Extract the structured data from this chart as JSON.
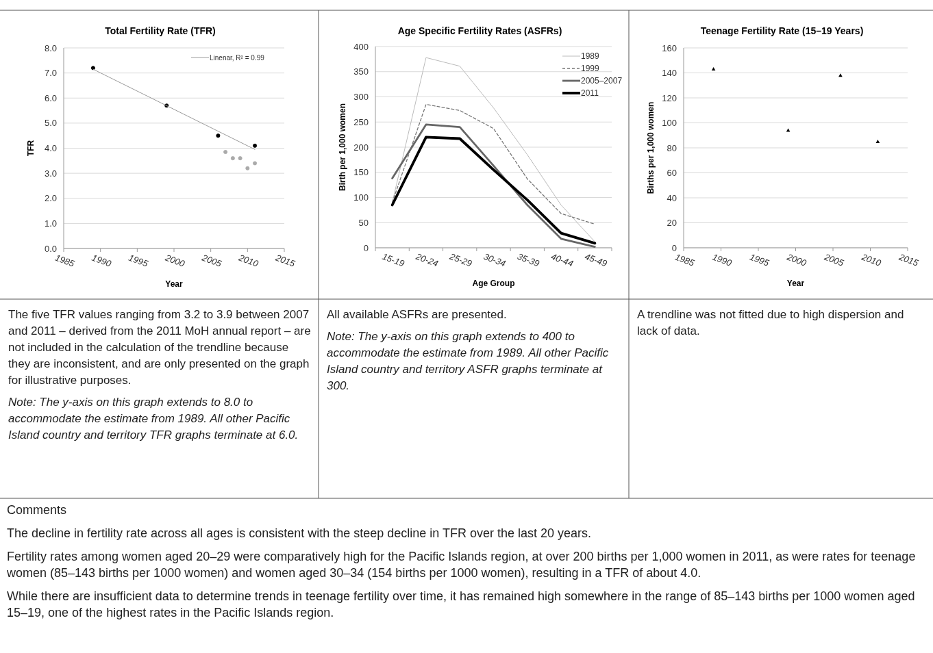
{
  "chart_data": [
    {
      "type": "scatter",
      "title": "Total Fertility Rate (TFR)",
      "xlabel": "Year",
      "ylabel": "TFR",
      "xlim": [
        1985,
        2015
      ],
      "xticks": [
        1985,
        1990,
        1995,
        2000,
        2005,
        2010,
        2015
      ],
      "ylim": [
        0,
        8
      ],
      "yticks": [
        {
          "value": 0,
          "label": "0.0"
        },
        {
          "value": 1,
          "label": "1.0"
        },
        {
          "value": 2,
          "label": "2.0"
        },
        {
          "value": 3,
          "label": "3.0"
        },
        {
          "value": 4,
          "label": "4.0"
        },
        {
          "value": 5,
          "label": "5.0"
        },
        {
          "value": 6,
          "label": "6.0"
        },
        {
          "value": 7,
          "label": "7.0"
        },
        {
          "value": 8,
          "label": "8.0"
        }
      ],
      "grid": "y",
      "legend": "top right",
      "marker": "circle",
      "series": [
        {
          "color": "#000000",
          "x": [
            1989,
            1999,
            2006,
            2011
          ],
          "values": [
            7.2,
            5.7,
            4.5,
            4.1
          ]
        },
        {
          "color": "#aaaaaa",
          "x": [
            2007,
            2008,
            2009,
            2010,
            2011
          ],
          "values": [
            3.85,
            3.6,
            3.6,
            3.2,
            3.4
          ]
        },
        {
          "type": "line",
          "name": "Linenar, R² = 0.99",
          "marker": "none",
          "color": "#999999",
          "x": [
            1989,
            2011
          ],
          "values": [
            7.15,
            3.95
          ]
        }
      ],
      "annotations": [
        "The five TFR values ranging from 3.2 to 3.9 between 2007 and 2011 – derived from the 2011 MoH annual report – are not included in the calculation of the trendline because they are inconsistent, and are only presented on the graph for illustrative purposes.",
        "Note: The y-axis on this graph extends to 8.0 to accommodate the estimate from 1989.  All other Pacific Island country and territory TFR graphs terminate at 6.0."
      ]
    },
    {
      "type": "line",
      "title": "Age Specific Fertility Rates (ASFRs)",
      "xlabel": "Age Group",
      "ylabel": "Birth per 1,000 women",
      "categories": [
        "15-19",
        "20-24",
        "25-29",
        "30-34",
        "35-39",
        "40-44",
        "45-49"
      ],
      "ylim": [
        0,
        400
      ],
      "yticks": [
        0,
        50,
        100,
        150,
        200,
        250,
        300,
        350,
        400
      ],
      "grid": "y",
      "legend": "top right",
      "series": [
        {
          "name": "1989",
          "color": "#bbbbbb",
          "values": [
            90,
            378,
            361,
            278,
            185,
            85,
            12
          ]
        },
        {
          "name": "1999",
          "color": "#777777",
          "line_style": "dashed",
          "values": [
            90,
            285,
            273,
            237,
            137,
            68,
            47
          ]
        },
        {
          "name": "2005–2007",
          "color": "#666666",
          "values": [
            138,
            245,
            240,
            163,
            85,
            18,
            2
          ]
        },
        {
          "name": "2011",
          "color": "#000000",
          "values": [
            85,
            220,
            217,
            155,
            95,
            29,
            9
          ]
        }
      ],
      "annotations": [
        "All available ASFRs are presented.",
        "Note: The y-axis on this graph extends to 400 to accommodate the estimate from 1989. All other Pacific Island country and territory ASFR graphs terminate at 300."
      ]
    },
    {
      "type": "scatter",
      "title": "Teenage Fertility Rate (15–19 Years)",
      "xlabel": "Year",
      "ylabel": "Births per 1,000 women",
      "xlim": [
        1985,
        2015
      ],
      "xticks": [
        1985,
        1990,
        1995,
        2000,
        2005,
        2010,
        2015
      ],
      "ylim": [
        0,
        160
      ],
      "yticks": [
        0,
        20,
        40,
        60,
        80,
        100,
        120,
        140,
        160
      ],
      "grid": "y",
      "marker": "triangle",
      "series": [
        {
          "color": "#000000",
          "x": [
            1989,
            1999,
            2006,
            2011
          ],
          "values": [
            143,
            94,
            138,
            85
          ]
        }
      ],
      "annotations": [
        "A trendline was not fitted due to high dispersion and lack of data."
      ]
    },
    {
      "type": "other",
      "title": "Comments",
      "annotations": [
        "The decline in fertility rate across all ages is consistent with the steep decline in TFR over the last 20 years.",
        "Fertility rates among women aged 20–29 were comparatively high for the Pacific Islands region, at over 200 births per 1,000 women in 2011, as were rates for teenage women (85–143 births per 1000 women) and women aged 30–34 (154 births per 1000 women), resulting in a TFR of about 4.0.",
        "While there are insufficient data to determine trends in teenage fertility over time, it has remained high somewhere in the range of 85–143 births per 1000 women aged 15–19, one of the highest rates in the Pacific Islands region."
      ]
    }
  ]
}
